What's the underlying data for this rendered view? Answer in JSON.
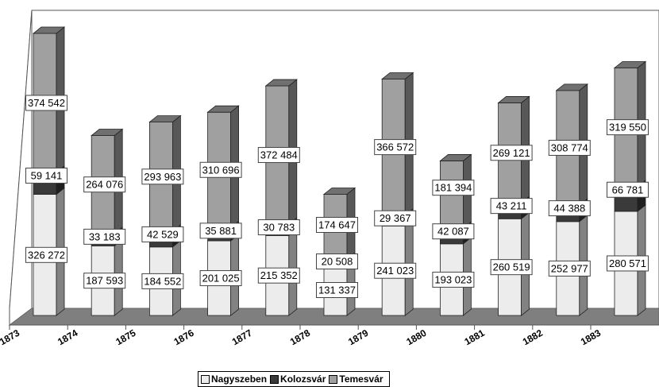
{
  "chart_data": {
    "type": "bar",
    "stacked": true,
    "categories": [
      "1873",
      "1874",
      "1875",
      "1876",
      "1877",
      "1878",
      "1879",
      "1880",
      "1881",
      "1882",
      "1883"
    ],
    "series": [
      {
        "name": "Nagyszeben",
        "color": "#ececec",
        "values": [
          326272,
          187593,
          184552,
          201025,
          215352,
          131337,
          241023,
          193023,
          260519,
          252977,
          280571
        ],
        "labels": [
          "326 272",
          "187 593",
          "184 552",
          "201 025",
          "215 352",
          "131 337",
          "241 023",
          "193 023",
          "260 519",
          "252 977",
          "280 571"
        ]
      },
      {
        "name": "Kolozsvár",
        "color": "#3a3a3a",
        "values": [
          59141,
          33183,
          42529,
          35881,
          30783,
          20508,
          29367,
          42087,
          43211,
          44388,
          66781
        ],
        "labels": [
          "59 141",
          "33 183",
          "42 529",
          "35 881",
          "30 783",
          "20 508",
          "29 367",
          "42 087",
          "43 211",
          "44 388",
          "66 781"
        ]
      },
      {
        "name": "Temesvár",
        "color": "#a0a0a0",
        "values": [
          374542,
          264076,
          293963,
          310696,
          372484,
          174647,
          366572,
          181394,
          269121,
          308774,
          319550
        ],
        "labels": [
          "374 542",
          "264 076",
          "293 963",
          "310 696",
          "372 484",
          "174 647",
          "366 572",
          "181 394",
          "269 121",
          "308 774",
          "319 550"
        ]
      }
    ],
    "legend_position": "bottom",
    "grid": false
  }
}
